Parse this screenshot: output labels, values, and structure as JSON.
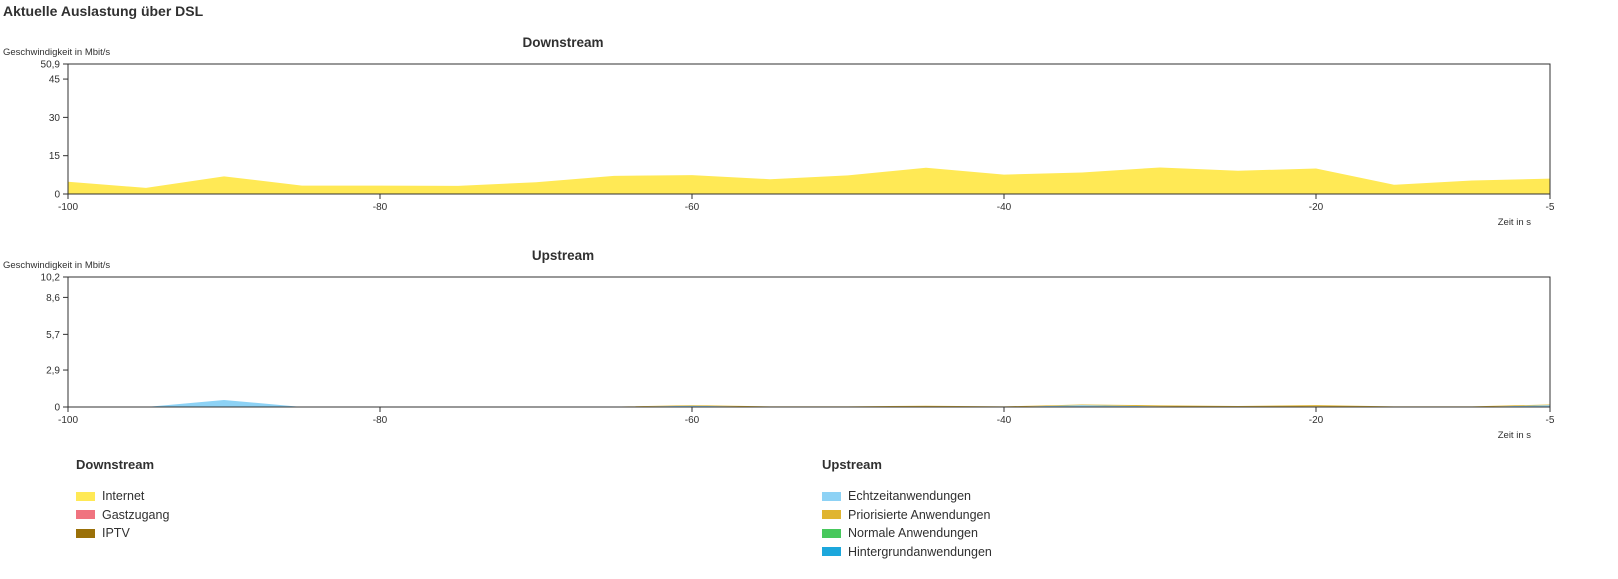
{
  "page_title": "Aktuelle Auslastung über DSL",
  "charts": [
    {
      "id": "downstream",
      "title": "Downstream",
      "ylabel": "Geschwindigkeit in Mbit/s",
      "xlabel": "Zeit in s",
      "ymax": 50.9,
      "yticks": [
        {
          "value": 0,
          "label": "0"
        },
        {
          "value": 15,
          "label": "15"
        },
        {
          "value": 30,
          "label": "30"
        },
        {
          "value": 45,
          "label": "45"
        },
        {
          "value": 50.9,
          "label": "50,9"
        }
      ],
      "xmin": -100,
      "xmax": -5,
      "xticks": [
        {
          "value": -100,
          "label": "-100"
        },
        {
          "value": -80,
          "label": "-80"
        },
        {
          "value": -60,
          "label": "-60"
        },
        {
          "value": -40,
          "label": "-40"
        },
        {
          "value": -20,
          "label": "-20"
        },
        {
          "value": -5,
          "label": "-5"
        }
      ]
    },
    {
      "id": "upstream",
      "title": "Upstream",
      "ylabel": "Geschwindigkeit in Mbit/s",
      "xlabel": "Zeit in s",
      "ymax": 10.2,
      "yticks": [
        {
          "value": 0,
          "label": "0"
        },
        {
          "value": 2.9,
          "label": "2,9"
        },
        {
          "value": 5.7,
          "label": "5,7"
        },
        {
          "value": 8.6,
          "label": "8,6"
        },
        {
          "value": 10.2,
          "label": "10,2"
        }
      ],
      "xmin": -100,
      "xmax": -5,
      "xticks": [
        {
          "value": -100,
          "label": "-100"
        },
        {
          "value": -80,
          "label": "-80"
        },
        {
          "value": -60,
          "label": "-60"
        },
        {
          "value": -40,
          "label": "-40"
        },
        {
          "value": -20,
          "label": "-20"
        },
        {
          "value": -5,
          "label": "-5"
        }
      ]
    }
  ],
  "chart_data": [
    {
      "type": "area",
      "title": "Downstream",
      "ylabel": "Geschwindigkeit in Mbit/s",
      "xlabel": "Zeit in s",
      "ylim": [
        0,
        50.9
      ],
      "xlim": [
        -100,
        -5
      ],
      "x": [
        -100,
        -95,
        -90,
        -85,
        -80,
        -75,
        -70,
        -65,
        -60,
        -55,
        -50,
        -45,
        -40,
        -35,
        -30,
        -25,
        -20,
        -15,
        -10,
        -5
      ],
      "series": [
        {
          "name": "Internet",
          "color": "#ffe955",
          "values": [
            4.8,
            2.4,
            6.9,
            3.3,
            3.3,
            3.2,
            4.6,
            7.1,
            7.4,
            5.8,
            7.3,
            10.3,
            7.6,
            8.4,
            10.4,
            9.1,
            10.0,
            3.6,
            5.3,
            6.0
          ]
        },
        {
          "name": "Gastzugang",
          "color": "#f0737f",
          "values": [
            0,
            0,
            0,
            0,
            0,
            0,
            0,
            0,
            0,
            0,
            0,
            0,
            0,
            0,
            0,
            0,
            0,
            0,
            0,
            0
          ]
        },
        {
          "name": "IPTV",
          "color": "#9a7008",
          "values": [
            0,
            0,
            0,
            0,
            0,
            0,
            0,
            0,
            0,
            0,
            0,
            0,
            0,
            0,
            0,
            0,
            0,
            0,
            0,
            0
          ]
        }
      ]
    },
    {
      "type": "area",
      "title": "Upstream",
      "ylabel": "Geschwindigkeit in Mbit/s",
      "xlabel": "Zeit in s",
      "ylim": [
        0,
        10.2
      ],
      "xlim": [
        -100,
        -5
      ],
      "x": [
        -100,
        -95,
        -90,
        -85,
        -80,
        -75,
        -70,
        -65,
        -60,
        -55,
        -50,
        -45,
        -40,
        -35,
        -30,
        -25,
        -20,
        -15,
        -10,
        -5
      ],
      "series": [
        {
          "name": "Echtzeitanwendungen",
          "color": "#8dd2f5",
          "values": [
            0,
            0,
            0.55,
            0,
            0,
            0,
            0,
            0,
            0.1,
            0,
            0,
            0,
            0,
            0.15,
            0.05,
            0,
            0.05,
            0,
            0,
            0.15
          ]
        },
        {
          "name": "Priorisierte Anwendungen",
          "color": "#e0b531",
          "values": [
            0,
            0,
            0,
            0,
            0,
            0,
            0.03,
            0.03,
            0.05,
            0.05,
            0.05,
            0.1,
            0.05,
            0.05,
            0.08,
            0.08,
            0.1,
            0.05,
            0.05,
            0.05
          ]
        },
        {
          "name": "Normale Anwendungen",
          "color": "#47c85c",
          "values": [
            0,
            0,
            0,
            0,
            0,
            0,
            0,
            0,
            0,
            0,
            0,
            0,
            0,
            0,
            0,
            0,
            0,
            0,
            0,
            0
          ]
        },
        {
          "name": "Hintergrundanwendungen",
          "color": "#1ca7dc",
          "values": [
            0,
            0,
            0,
            0,
            0,
            0,
            0,
            0,
            0,
            0,
            0,
            0,
            0,
            0,
            0,
            0,
            0,
            0,
            0,
            0
          ]
        }
      ]
    }
  ],
  "legend": {
    "downstream": {
      "title": "Downstream",
      "items": [
        {
          "label": "Internet",
          "color": "#ffe955"
        },
        {
          "label": "Gastzugang",
          "color": "#f0737f"
        },
        {
          "label": "IPTV",
          "color": "#9a7008"
        }
      ]
    },
    "upstream": {
      "title": "Upstream",
      "items": [
        {
          "label": "Echtzeitanwendungen",
          "color": "#8dd2f5"
        },
        {
          "label": "Priorisierte Anwendungen",
          "color": "#e0b531"
        },
        {
          "label": "Normale Anwendungen",
          "color": "#47c85c"
        },
        {
          "label": "Hintergrundanwendungen",
          "color": "#1ca7dc"
        }
      ]
    }
  }
}
